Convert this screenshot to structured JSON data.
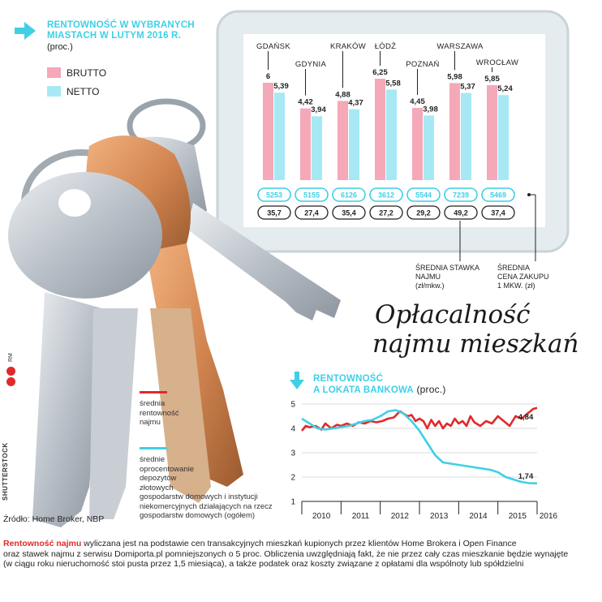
{
  "chart_data": [
    {
      "type": "bar",
      "title": "RENTOWNOŚĆ W WYBRANYCH MIASTACH W LUTYM 2016 R.",
      "subtitle": "(proc.)",
      "categories": [
        "GDAŃSK",
        "GDYNIA",
        "KRAKÓW",
        "ŁÓDŹ",
        "POZNAŃ",
        "WARSZAWA",
        "WROCŁAW"
      ],
      "series": [
        {
          "name": "BRUTTO",
          "values": [
            6,
            4.42,
            4.88,
            6.25,
            4.45,
            5.98,
            5.85
          ],
          "labels": [
            "6",
            "4,42",
            "4,88",
            "6,25",
            "4,45",
            "5,98",
            "5,85"
          ]
        },
        {
          "name": "NETTO",
          "values": [
            5.39,
            3.94,
            4.37,
            5.58,
            3.98,
            5.37,
            5.24
          ],
          "labels": [
            "5,39",
            "3,94",
            "4,37",
            "5,58",
            "3,98",
            "5,37",
            "5,24"
          ]
        }
      ],
      "colors": {
        "BRUTTO": "#f4a8b8",
        "NETTO": "#a6e9f4"
      },
      "avg_price": [
        "5253",
        "5155",
        "6126",
        "3612",
        "5544",
        "7239",
        "5469"
      ],
      "avg_rent": [
        "35,7",
        "27,4",
        "35,4",
        "27,2",
        "29,2",
        "49,2",
        "37,4"
      ],
      "annotation_rent": [
        "ŚREDNIA STAWKA",
        "NAJMU",
        "(zł/mkw.)"
      ],
      "annotation_price": [
        "ŚREDNIA",
        "CENA ZAKUPU",
        "1 MKW. (zł)"
      ]
    },
    {
      "type": "line",
      "title": "RENTOWNOŚĆ A LOKATA BANKOWA",
      "subtitle": "(proc.)",
      "x_ticks": [
        "2010",
        "2011",
        "2012",
        "2013",
        "2014",
        "2015",
        "2016"
      ],
      "xlim": [
        2010,
        2016
      ],
      "ylim": [
        1,
        5
      ],
      "y_ticks": [
        "1",
        "2",
        "3",
        "4",
        "5"
      ],
      "grid": true,
      "series": [
        {
          "name": "średnia rentowność najmu",
          "color": "#e02a2a",
          "x": [
            2010.0,
            2010.1,
            2010.2,
            2010.35,
            2010.5,
            2010.6,
            2010.75,
            2010.9,
            2011.0,
            2011.15,
            2011.3,
            2011.45,
            2011.6,
            2011.75,
            2011.9,
            2012.05,
            2012.2,
            2012.35,
            2012.5,
            2012.6,
            2012.7,
            2012.8,
            2012.9,
            2013.0,
            2013.1,
            2013.2,
            2013.3,
            2013.4,
            2013.5,
            2013.6,
            2013.7,
            2013.8,
            2013.9,
            2014.0,
            2014.1,
            2014.2,
            2014.3,
            2014.4,
            2014.55,
            2014.7,
            2014.85,
            2015.0,
            2015.15,
            2015.3,
            2015.45,
            2015.6,
            2015.75,
            2015.9,
            2016.0
          ],
          "y": [
            3.9,
            4.1,
            4.05,
            4.1,
            3.95,
            4.2,
            4.0,
            4.15,
            4.1,
            4.2,
            4.1,
            4.25,
            4.2,
            4.3,
            4.25,
            4.3,
            4.4,
            4.45,
            4.7,
            4.6,
            4.5,
            4.55,
            4.3,
            4.4,
            4.3,
            4.0,
            4.35,
            4.1,
            4.3,
            4.0,
            4.2,
            4.1,
            4.4,
            4.2,
            4.3,
            4.1,
            4.5,
            4.25,
            4.1,
            4.3,
            4.2,
            4.5,
            4.3,
            4.1,
            4.5,
            4.4,
            4.6,
            4.8,
            4.84
          ]
        },
        {
          "name": "średnie oprocentowanie depozytów złotowych gospodarstw domowych i instytucji niekomercyjnych działających na rzecz gospodarstw domowych (ogółem)",
          "color": "#3fd0e6",
          "x": [
            2010.0,
            2010.2,
            2010.4,
            2010.6,
            2010.8,
            2011.0,
            2011.2,
            2011.4,
            2011.6,
            2011.8,
            2012.0,
            2012.2,
            2012.4,
            2012.6,
            2012.8,
            2013.0,
            2013.2,
            2013.4,
            2013.6,
            2013.8,
            2014.0,
            2014.2,
            2014.4,
            2014.6,
            2014.8,
            2015.0,
            2015.2,
            2015.4,
            2015.6,
            2015.8,
            2016.0
          ],
          "y": [
            4.4,
            4.2,
            4.0,
            3.95,
            4.0,
            4.05,
            4.1,
            4.2,
            4.3,
            4.35,
            4.5,
            4.7,
            4.75,
            4.6,
            4.3,
            3.9,
            3.4,
            2.9,
            2.6,
            2.55,
            2.5,
            2.45,
            2.4,
            2.35,
            2.3,
            2.2,
            2.0,
            1.9,
            1.8,
            1.75,
            1.74
          ]
        }
      ],
      "end_labels": [
        "4,84",
        "1,74"
      ]
    }
  ],
  "header": {
    "title_line1": "RENTOWNOŚĆ W WYBRANYCH",
    "title_line2": "MIASTACH W LUTYM 2016 R.",
    "unit": "(proc.)",
    "legend_brutto": "BRUTTO",
    "legend_netto": "NETTO"
  },
  "main_title": {
    "line1": "Opłacalność",
    "line2": "najmu mieszkań"
  },
  "line_chart_header": {
    "title_line1": "RENTOWNOŚĆ",
    "title_line2": "A LOKATA BANKOWA",
    "unit": "(proc.)"
  },
  "legend2": {
    "red_lines": [
      "średnia",
      "rentowność",
      "najmu"
    ],
    "cyan_lines": [
      "średnie",
      "oprocentowanie",
      "depozytów",
      "złotowych",
      "gospodarstw domowych i instytucji",
      "niekomercyjnych działających na rzecz",
      "gospodarstw domowych (ogółem)"
    ]
  },
  "source": "Źródło: Home Broker, NBP",
  "credits": {
    "photo": "SHUTTERSTOCK",
    "author": "RM"
  },
  "footnote": {
    "bold": "Rentowność najmu",
    "line1": " wyliczana jest na podstawie cen transakcyjnych mieszkań kupionych przez klientów Home Brokera i Open Finance",
    "line2": "oraz stawek najmu z serwisu Domiporta.pl pomniejszonych o 5 proc. Obliczenia uwzględniają fakt, że nie przez cały czas mieszkanie będzie wynajęte",
    "line3": "(w ciągu roku nieruchomość stoi pusta przez 1,5 miesiąca), a także podatek oraz koszty związane z opłatami dla wspólnoty lub spółdzielni"
  }
}
